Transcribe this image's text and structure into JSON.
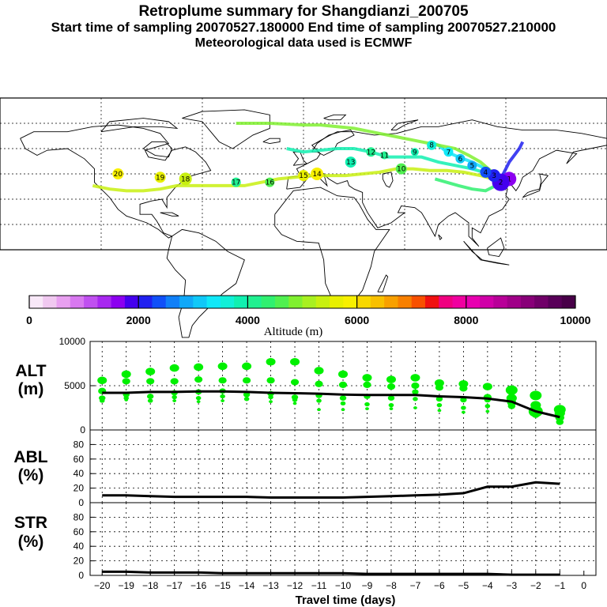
{
  "header": {
    "title": "Retroplume summary for Shangdianzi_200705",
    "sampling": "Start time of sampling 20070527.180000     End time of sampling 20070527.210000",
    "met": "Meteorological data used is ECMWF"
  },
  "colorbar": {
    "title": "Altitude (m)",
    "range": [
      0,
      10000
    ],
    "ticks": [
      "0",
      "2000",
      "4000",
      "6000",
      "8000",
      "10000"
    ],
    "colors": [
      "#f8e8f8",
      "#f0c8f0",
      "#e8a0f0",
      "#d878f0",
      "#c050f0",
      "#a828f0",
      "#8c00f0",
      "#4400ee",
      "#2020f0",
      "#1050f8",
      "#1080f8",
      "#10a8f8",
      "#10c8f8",
      "#10e8f8",
      "#10f0d8",
      "#10f0b0",
      "#20f090",
      "#30f070",
      "#50f050",
      "#80f030",
      "#a8f020",
      "#c8f010",
      "#e8f000",
      "#f8f000",
      "#f8d800",
      "#f8c000",
      "#f8a000",
      "#f88000",
      "#f85000",
      "#f01010",
      "#f00080",
      "#f000a0",
      "#e800b0",
      "#d000a8",
      "#b80098",
      "#a00088",
      "#880078",
      "#700068",
      "#580058",
      "#480048"
    ]
  },
  "map": {
    "icons": {
      "land": "coastline-map",
      "trajectory": "retroplume-cluster-path"
    },
    "cluster_labels": [
      "20",
      "19",
      "18",
      "17",
      "16",
      "15",
      "14",
      "13",
      "12",
      "11",
      "10",
      "9",
      "8",
      "7",
      "6",
      "5",
      "4",
      "3",
      "2",
      "1"
    ]
  },
  "chart_data": [
    {
      "type": "scatter",
      "panel": "ALT",
      "ylabel_line1": "ALT",
      "ylabel_line2": "(m)",
      "ylim": [
        0,
        10000
      ],
      "yticks": [
        "0",
        "5000",
        "10000"
      ],
      "x": [
        -20,
        -19,
        -18,
        -17,
        -16,
        -15,
        -14,
        -13,
        -12,
        -11,
        -10,
        -9,
        -8,
        -7,
        -6,
        -5,
        -4,
        -3,
        -2,
        -1
      ],
      "mean_line": [
        4200,
        4200,
        4300,
        4300,
        4350,
        4350,
        4300,
        4200,
        4150,
        4100,
        4000,
        3950,
        3950,
        3950,
        3800,
        3700,
        3550,
        3200,
        2100,
        1450
      ],
      "cluster_points": [
        {
          "x": -20,
          "alt": [
            5600,
            4400,
            3600,
            3300
          ]
        },
        {
          "x": -19,
          "alt": [
            6300,
            5500,
            4000,
            3600,
            3400
          ]
        },
        {
          "x": -18,
          "alt": [
            6600,
            5500,
            3800,
            3300
          ]
        },
        {
          "x": -17,
          "alt": [
            7000,
            5500,
            4200,
            3700,
            3300
          ]
        },
        {
          "x": -16,
          "alt": [
            7100,
            5700,
            4300,
            3600,
            3200
          ]
        },
        {
          "x": -15,
          "alt": [
            7200,
            5600,
            4400,
            3800,
            3300
          ]
        },
        {
          "x": -14,
          "alt": [
            7200,
            5600,
            4000,
            3500
          ]
        },
        {
          "x": -13,
          "alt": [
            7700,
            5600,
            4100,
            3700,
            3200
          ]
        },
        {
          "x": -12,
          "alt": [
            7700,
            5400,
            3700,
            3400,
            3000
          ]
        },
        {
          "x": -11,
          "alt": [
            6700,
            5200,
            3900,
            3300,
            2300
          ]
        },
        {
          "x": -10,
          "alt": [
            6300,
            5100,
            3600,
            3000,
            2300
          ]
        },
        {
          "x": -9,
          "alt": [
            5900,
            5100,
            3800,
            2900,
            2400
          ]
        },
        {
          "x": -8,
          "alt": [
            5700,
            4900,
            3600,
            2800,
            2400
          ]
        },
        {
          "x": -7,
          "alt": [
            5900,
            5000,
            4300,
            3500,
            2500
          ]
        },
        {
          "x": -6,
          "alt": [
            5300,
            4800,
            3500,
            2800,
            2200
          ]
        },
        {
          "x": -5,
          "alt": [
            5200,
            4700,
            3400,
            2500,
            2000
          ]
        },
        {
          "x": -4,
          "alt": [
            4900,
            3700,
            3400,
            2700,
            2100
          ]
        },
        {
          "x": -3,
          "alt": [
            4500,
            3600,
            3100,
            2700
          ]
        },
        {
          "x": -2,
          "alt": [
            3900,
            2800,
            2100,
            1700
          ]
        },
        {
          "x": -1,
          "alt": [
            2300,
            1900,
            1400,
            900
          ]
        }
      ],
      "point_color": "#00f000"
    },
    {
      "type": "line",
      "panel": "ABL",
      "ylabel_line1": "ABL",
      "ylabel_line2": "(%)",
      "ylim": [
        0,
        100
      ],
      "yticks": [
        "0",
        "20",
        "40",
        "60",
        "80"
      ],
      "x": [
        -20,
        -19,
        -18,
        -17,
        -16,
        -15,
        -14,
        -13,
        -12,
        -11,
        -10,
        -9,
        -8,
        -7,
        -6,
        -5,
        -4,
        -3,
        -2,
        -1
      ],
      "values": [
        10,
        10,
        9,
        8,
        8,
        8,
        8,
        7,
        7,
        7,
        7,
        8,
        9,
        10,
        11,
        13,
        22,
        22,
        28,
        26
      ]
    },
    {
      "type": "line",
      "panel": "STR",
      "ylabel_line1": "STR",
      "ylabel_line2": "(%)",
      "ylim": [
        0,
        100
      ],
      "yticks": [
        "0",
        "20",
        "40",
        "60",
        "80"
      ],
      "xlabel": "Travel time (days)",
      "xticks": [
        "−20",
        "−19",
        "−18",
        "−17",
        "−16",
        "−15",
        "−14",
        "−13",
        "−12",
        "−11",
        "−10",
        "−9",
        "−8",
        "−7",
        "−6",
        "−5",
        "−4",
        "−3",
        "−2",
        "−1",
        "0"
      ],
      "x": [
        -20,
        -19,
        -18,
        -17,
        -16,
        -15,
        -14,
        -13,
        -12,
        -11,
        -10,
        -9,
        -8,
        -7,
        -6,
        -5,
        -4,
        -3,
        -2,
        -1
      ],
      "values": [
        5,
        5,
        4,
        4,
        4,
        3,
        3,
        3,
        3,
        3,
        3,
        2,
        2,
        2,
        2,
        2,
        2,
        1,
        1,
        1
      ]
    }
  ]
}
